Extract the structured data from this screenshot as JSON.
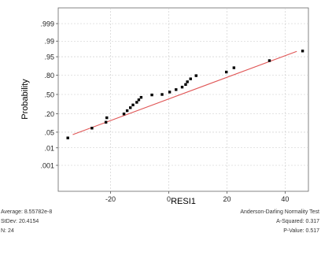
{
  "chart_data": {
    "type": "scatter",
    "title": "",
    "xlabel": "RESI1",
    "ylabel": "Probability",
    "x_ticks": [
      -20,
      0,
      20,
      40
    ],
    "x_tick_labels": [
      "-20",
      "0",
      "20",
      "40"
    ],
    "y_ticks": [
      0.001,
      0.01,
      0.05,
      0.2,
      0.5,
      0.8,
      0.95,
      0.99,
      0.999
    ],
    "y_tick_labels": [
      ".001",
      ".01",
      ".05",
      ".20",
      ".50",
      ".80",
      ".95",
      ".99",
      ".999"
    ],
    "y_scale": "normal-probability",
    "xlim": [
      -38,
      48
    ],
    "grid": true,
    "point_color": "#000000",
    "fit_line_color": "#e05555",
    "points": [
      {
        "x": -34.7,
        "y": 0.029
      },
      {
        "x": -26.4,
        "y": 0.071
      },
      {
        "x": -21.6,
        "y": 0.113
      },
      {
        "x": -21.3,
        "y": 0.155
      },
      {
        "x": -15.4,
        "y": 0.198
      },
      {
        "x": -14.3,
        "y": 0.24
      },
      {
        "x": -13.2,
        "y": 0.282
      },
      {
        "x": -12.3,
        "y": 0.324
      },
      {
        "x": -11.0,
        "y": 0.366
      },
      {
        "x": -10.3,
        "y": 0.408
      },
      {
        "x": -9.5,
        "y": 0.45
      },
      {
        "x": -5.8,
        "y": 0.492
      },
      {
        "x": -2.3,
        "y": 0.5
      },
      {
        "x": 0.3,
        "y": 0.542
      },
      {
        "x": 2.5,
        "y": 0.584
      },
      {
        "x": 4.6,
        "y": 0.626
      },
      {
        "x": 5.8,
        "y": 0.668
      },
      {
        "x": 6.4,
        "y": 0.71
      },
      {
        "x": 7.5,
        "y": 0.752
      },
      {
        "x": 9.4,
        "y": 0.794
      },
      {
        "x": 19.8,
        "y": 0.836
      },
      {
        "x": 22.4,
        "y": 0.878
      },
      {
        "x": 34.6,
        "y": 0.93
      },
      {
        "x": 46.0,
        "y": 0.971
      }
    ],
    "fit_line": {
      "x": [
        -33,
        44
      ],
      "y": [
        0.04,
        0.97
      ]
    }
  },
  "stats_left": {
    "average": "Average: 8.55782e-8",
    "stdev": "StDev: 20.4154",
    "n": "N: 24"
  },
  "stats_right": {
    "test_name": "Anderson-Darling Normality Test",
    "a_squared": "A-Squared: 0.317",
    "p_value": "P-Value:  0.517"
  }
}
